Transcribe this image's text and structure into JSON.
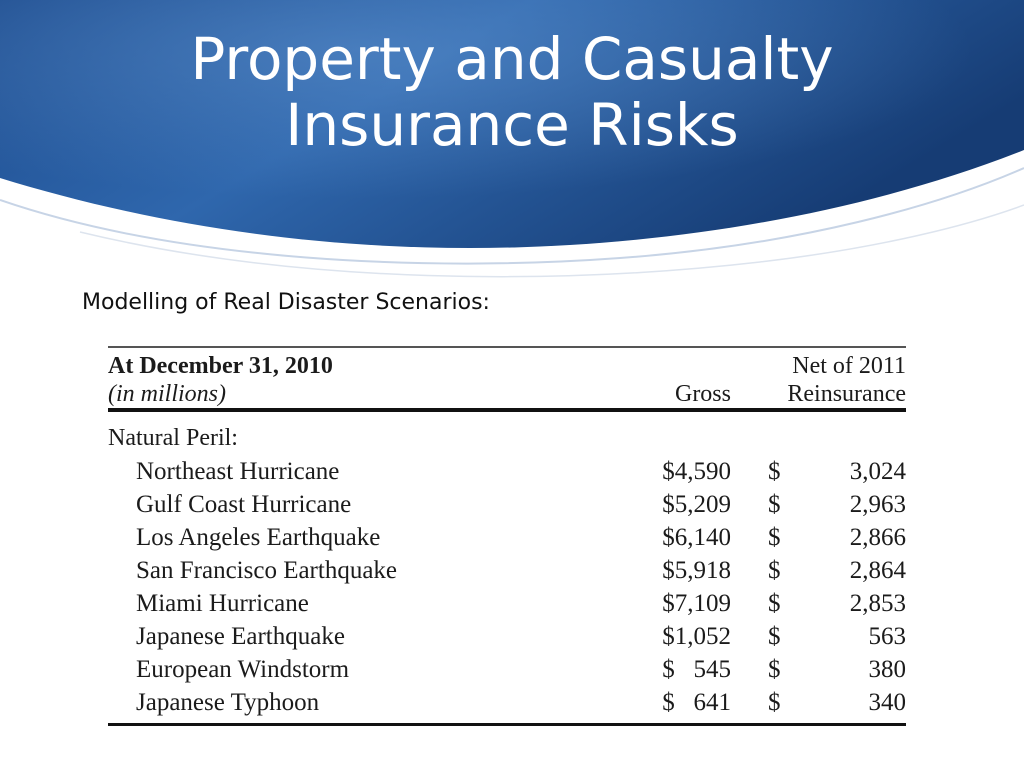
{
  "slide": {
    "title_line1": "Property and Casualty",
    "title_line2": "Insurance Risks",
    "subtitle": "Modelling of Real Disaster Scenarios:"
  },
  "table": {
    "header_date": "At December 31, 2010",
    "header_units": "(in millions)",
    "col_gross": "Gross",
    "col_net_line1": "Net of 2011",
    "col_net_line2": "Reinsurance",
    "section_label": "Natural Peril:",
    "currency_symbol": "$",
    "rows": [
      {
        "peril": "Northeast Hurricane",
        "gross": "$4,590",
        "net": "3,024"
      },
      {
        "peril": "Gulf Coast Hurricane",
        "gross": "$5,209",
        "net": "2,963"
      },
      {
        "peril": "Los Angeles Earthquake",
        "gross": "$6,140",
        "net": "2,866"
      },
      {
        "peril": "San Francisco Earthquake",
        "gross": "$5,918",
        "net": "2,864"
      },
      {
        "peril": "Miami Hurricane",
        "gross": "$7,109",
        "net": "2,853"
      },
      {
        "peril": "Japanese Earthquake",
        "gross": "$1,052",
        "net": "563"
      },
      {
        "peril": "European Windstorm",
        "gross": "$   545",
        "net": "380"
      },
      {
        "peril": "Japanese Typhoon",
        "gross": "$   641",
        "net": "340"
      }
    ]
  },
  "colors": {
    "banner_dark": "#173f7a",
    "banner_mid": "#2b62a8",
    "banner_light": "#4f86c6"
  }
}
